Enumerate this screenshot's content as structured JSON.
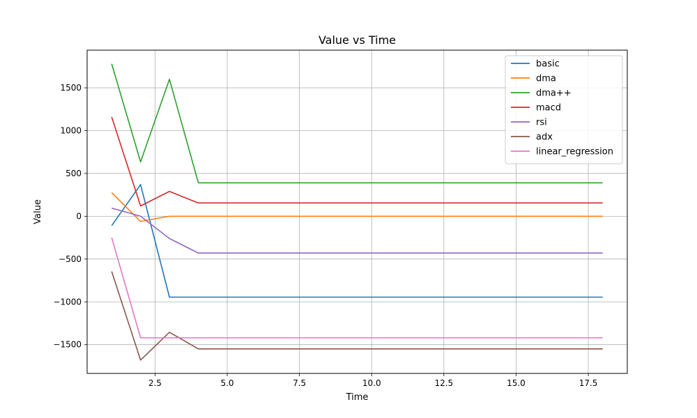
{
  "chart_data": {
    "type": "line",
    "title": "Value vs Time",
    "xlabel": "Time",
    "ylabel": "Value",
    "xlim": [
      0.15,
      18.85
    ],
    "ylim": [
      -1836,
      1940
    ],
    "xticks": [
      2.5,
      5.0,
      7.5,
      10.0,
      12.5,
      15.0,
      17.5
    ],
    "xtick_labels": [
      "2.5",
      "5.0",
      "7.5",
      "10.0",
      "12.5",
      "15.0",
      "17.5"
    ],
    "yticks": [
      -1500,
      -1000,
      -500,
      0,
      500,
      1000,
      1500
    ],
    "ytick_labels": [
      "−1500",
      "−1000",
      "−500",
      "0",
      "500",
      "1000",
      "1500"
    ],
    "grid": true,
    "legend_position": "top-right",
    "x": [
      1,
      2,
      3,
      4,
      5,
      6,
      7,
      8,
      9,
      10,
      11,
      12,
      13,
      14,
      15,
      16,
      17,
      18
    ],
    "series": [
      {
        "name": "basic",
        "color": "#1f77b4",
        "values": [
          -110,
          370,
          -945,
          -945,
          -945,
          -945,
          -945,
          -945,
          -945,
          -945,
          -945,
          -945,
          -945,
          -945,
          -945,
          -945,
          -945,
          -945
        ]
      },
      {
        "name": "dma",
        "color": "#ff7f0e",
        "values": [
          275,
          -60,
          0,
          0,
          0,
          0,
          0,
          0,
          0,
          0,
          0,
          0,
          0,
          0,
          0,
          0,
          0,
          0
        ]
      },
      {
        "name": "dma++",
        "color": "#2ca02c",
        "values": [
          1780,
          635,
          1600,
          390,
          390,
          390,
          390,
          390,
          390,
          390,
          390,
          390,
          390,
          390,
          390,
          390,
          390,
          390
        ]
      },
      {
        "name": "macd",
        "color": "#d62728",
        "values": [
          1160,
          120,
          290,
          155,
          155,
          155,
          155,
          155,
          155,
          155,
          155,
          155,
          155,
          155,
          155,
          155,
          155,
          155
        ]
      },
      {
        "name": "rsi",
        "color": "#9467bd",
        "values": [
          95,
          0,
          -260,
          -430,
          -430,
          -430,
          -430,
          -430,
          -430,
          -430,
          -430,
          -430,
          -430,
          -430,
          -430,
          -430,
          -430,
          -430
        ]
      },
      {
        "name": "adx",
        "color": "#8c564b",
        "values": [
          -645,
          -1680,
          -1355,
          -1550,
          -1550,
          -1550,
          -1550,
          -1550,
          -1550,
          -1550,
          -1550,
          -1550,
          -1550,
          -1550,
          -1550,
          -1550,
          -1550,
          -1550
        ]
      },
      {
        "name": "linear_regression",
        "color": "#e377c2",
        "values": [
          -250,
          -1420,
          -1420,
          -1420,
          -1420,
          -1420,
          -1420,
          -1420,
          -1420,
          -1420,
          -1420,
          -1420,
          -1420,
          -1420,
          -1420,
          -1420,
          -1420,
          -1420
        ]
      }
    ]
  }
}
